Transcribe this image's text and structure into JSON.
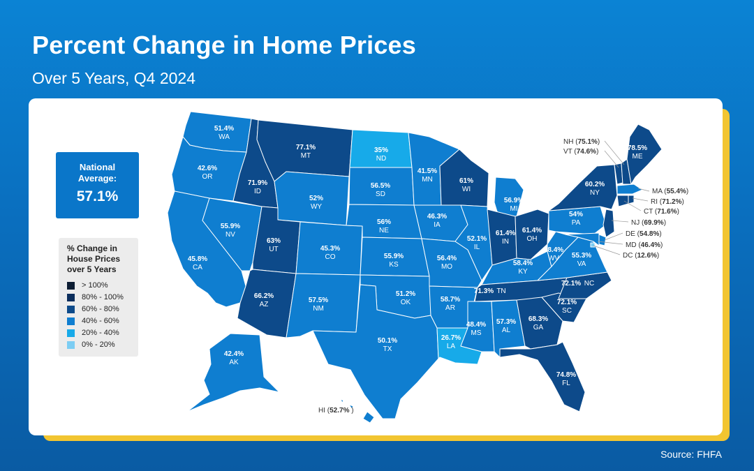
{
  "header": {
    "title": "Percent Change in Home Prices",
    "subtitle": "Over 5 Years, Q4 2024"
  },
  "national": {
    "label": "National Average:",
    "value": "57.1%"
  },
  "legend": {
    "title": "% Change in House Prices over 5 Years",
    "items": [
      {
        "label": "> 100%",
        "color": "#0c1d33"
      },
      {
        "label": "80% - 100%",
        "color": "#0b2d5c"
      },
      {
        "label": "60% - 80%",
        "color": "#0d4a8a"
      },
      {
        "label": "40% - 60%",
        "color": "#0f7ed0"
      },
      {
        "label": "20% - 40%",
        "color": "#17aae9"
      },
      {
        "label": "0% - 20%",
        "color": "#7ccdf3"
      }
    ]
  },
  "source": "Source: FHFA",
  "states": [
    {
      "code": "WA",
      "value": "51.4%",
      "pct": 51.4
    },
    {
      "code": "OR",
      "value": "42.6%",
      "pct": 42.6
    },
    {
      "code": "CA",
      "value": "45.8%",
      "pct": 45.8
    },
    {
      "code": "NV",
      "value": "55.9%",
      "pct": 55.9
    },
    {
      "code": "ID",
      "value": "71.9%",
      "pct": 71.9
    },
    {
      "code": "MT",
      "value": "77.1%",
      "pct": 77.1
    },
    {
      "code": "WY",
      "value": "52%",
      "pct": 52
    },
    {
      "code": "UT",
      "value": "63%",
      "pct": 63
    },
    {
      "code": "AZ",
      "value": "66.2%",
      "pct": 66.2
    },
    {
      "code": "CO",
      "value": "45.3%",
      "pct": 45.3
    },
    {
      "code": "NM",
      "value": "57.5%",
      "pct": 57.5
    },
    {
      "code": "ND",
      "value": "35%",
      "pct": 35
    },
    {
      "code": "SD",
      "value": "56.5%",
      "pct": 56.5
    },
    {
      "code": "NE",
      "value": "56%",
      "pct": 56
    },
    {
      "code": "KS",
      "value": "55.9%",
      "pct": 55.9
    },
    {
      "code": "OK",
      "value": "51.2%",
      "pct": 51.2
    },
    {
      "code": "TX",
      "value": "50.1%",
      "pct": 50.1
    },
    {
      "code": "MN",
      "value": "41.5%",
      "pct": 41.5
    },
    {
      "code": "IA",
      "value": "46.3%",
      "pct": 46.3
    },
    {
      "code": "MO",
      "value": "56.4%",
      "pct": 56.4
    },
    {
      "code": "AR",
      "value": "58.7%",
      "pct": 58.7
    },
    {
      "code": "LA",
      "value": "26.7%",
      "pct": 26.7
    },
    {
      "code": "WI",
      "value": "61%",
      "pct": 61
    },
    {
      "code": "IL",
      "value": "52.1%",
      "pct": 52.1
    },
    {
      "code": "MI",
      "value": "56.9%",
      "pct": 56.9
    },
    {
      "code": "IN",
      "value": "61.4%",
      "pct": 61.4
    },
    {
      "code": "OH",
      "value": "61.4%",
      "pct": 61.4
    },
    {
      "code": "KY",
      "value": "58.4%",
      "pct": 58.4
    },
    {
      "code": "TN",
      "value": "71.3%",
      "pct": 71.3
    },
    {
      "code": "MS",
      "value": "48.4%",
      "pct": 48.4
    },
    {
      "code": "AL",
      "value": "57.3%",
      "pct": 57.3
    },
    {
      "code": "GA",
      "value": "68.3%",
      "pct": 68.3
    },
    {
      "code": "FL",
      "value": "74.8%",
      "pct": 74.8
    },
    {
      "code": "SC",
      "value": "72.1%",
      "pct": 72.1
    },
    {
      "code": "NC",
      "value": "72.1%",
      "pct": 72.1
    },
    {
      "code": "VA",
      "value": "55.3%",
      "pct": 55.3
    },
    {
      "code": "WV",
      "value": "48.4%",
      "pct": 48.4
    },
    {
      "code": "PA",
      "value": "54%",
      "pct": 54
    },
    {
      "code": "NY",
      "value": "60.2%",
      "pct": 60.2
    },
    {
      "code": "ME",
      "value": "78.5%",
      "pct": 78.5
    },
    {
      "code": "AK",
      "value": "42.4%",
      "pct": 42.4
    }
  ],
  "callouts": [
    {
      "code": "NH",
      "value": "75.1%",
      "pct": 75.1
    },
    {
      "code": "VT",
      "value": "74.6%",
      "pct": 74.6
    },
    {
      "code": "MA",
      "value": "55.4%",
      "pct": 55.4
    },
    {
      "code": "RI",
      "value": "71.2%",
      "pct": 71.2
    },
    {
      "code": "CT",
      "value": "71.6%",
      "pct": 71.6
    },
    {
      "code": "NJ",
      "value": "69.9%",
      "pct": 69.9
    },
    {
      "code": "DE",
      "value": "54.8%",
      "pct": 54.8
    },
    {
      "code": "MD",
      "value": "46.4%",
      "pct": 46.4
    },
    {
      "code": "DC",
      "value": "12.6%",
      "pct": 12.6
    },
    {
      "code": "HI",
      "value": "52.7%",
      "pct": 52.7
    }
  ]
}
